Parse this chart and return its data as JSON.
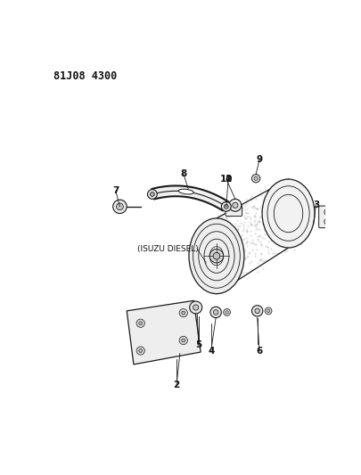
{
  "title": "81J08 4300",
  "background_color": "#ffffff",
  "title_fontsize": 8.5,
  "label_fontsize": 7.5,
  "annotation_fontsize": 6.5,
  "line_color": "#1a1a1a",
  "label_color": "#111111",
  "isuzu_text": "(ISUZU DIESEL)"
}
